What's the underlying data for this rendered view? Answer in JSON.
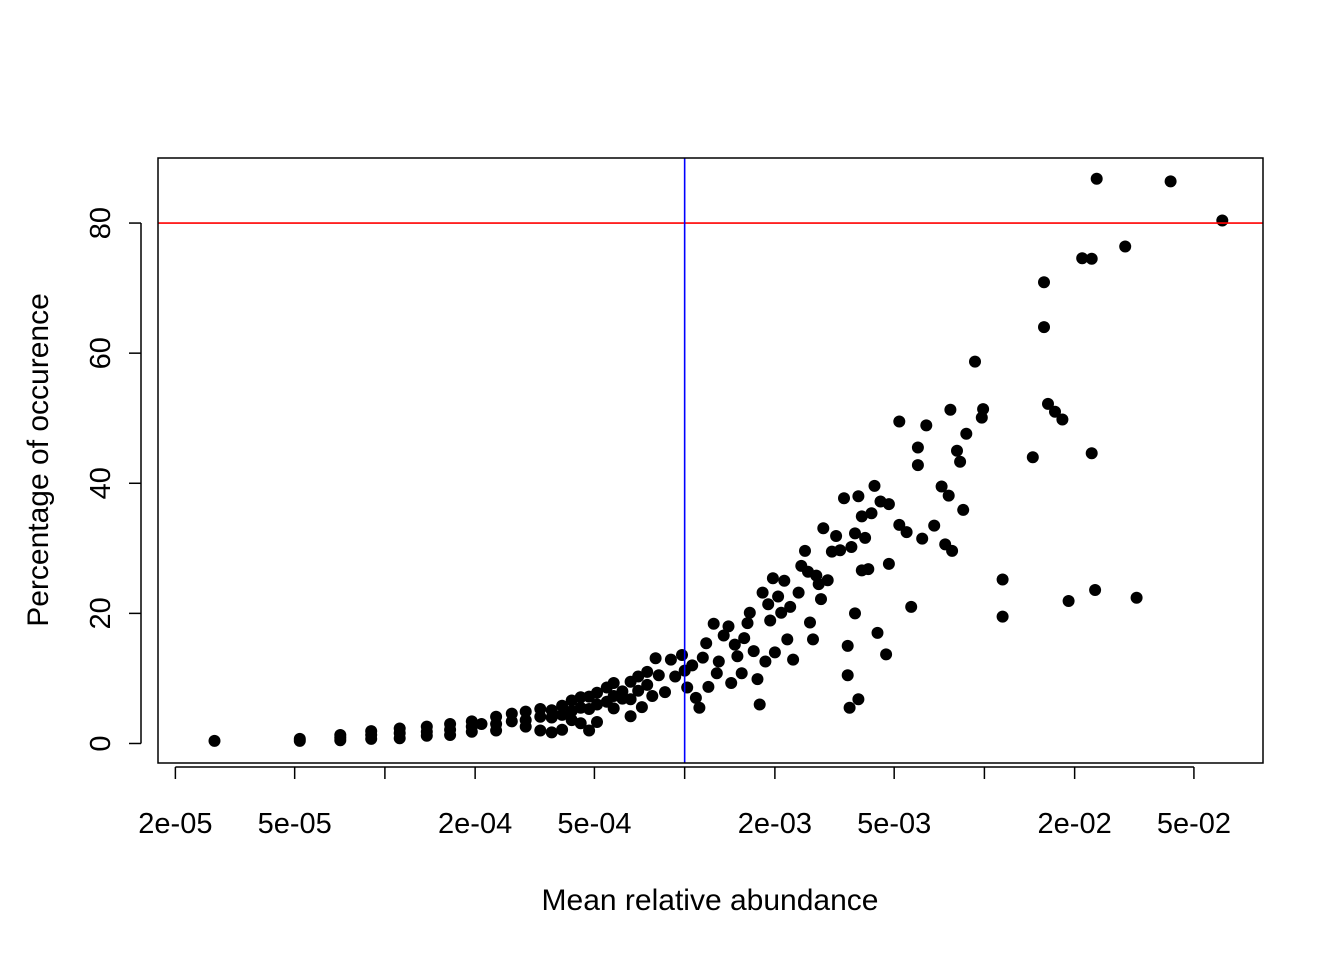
{
  "chart_data": {
    "type": "scatter",
    "title": "",
    "xlabel": "Mean relative abundance",
    "ylabel": "Percentage of occurence",
    "x_scale": "log",
    "xlim": [
      1.75e-05,
      0.085
    ],
    "ylim": [
      -3,
      90
    ],
    "x_ticks": [
      2e-05,
      5e-05,
      0.0001,
      0.0002,
      0.0005,
      0.001,
      0.002,
      0.005,
      0.01,
      0.02,
      0.05
    ],
    "x_tick_labels": [
      "2e-05",
      "5e-05",
      "",
      "2e-04",
      "5e-04",
      "",
      "2e-03",
      "5e-03",
      "",
      "2e-02",
      "5e-02"
    ],
    "y_ticks": [
      0,
      20,
      40,
      60,
      80
    ],
    "y_tick_labels": [
      "0",
      "20",
      "40",
      "60",
      "80"
    ],
    "grid": false,
    "legend": "none",
    "reference_lines": [
      {
        "orientation": "horizontal",
        "value": 80,
        "color": "#ff0000"
      },
      {
        "orientation": "vertical",
        "value": 0.001,
        "color": "#0000ff"
      }
    ],
    "point_color": "#000000",
    "points": [
      [
        2.7e-05,
        0.4
      ],
      [
        5.2e-05,
        0.7
      ],
      [
        5.2e-05,
        0.4
      ],
      [
        7.1e-05,
        1.3
      ],
      [
        7.1e-05,
        0.9
      ],
      [
        7.1e-05,
        0.5
      ],
      [
        9e-05,
        1.9
      ],
      [
        9e-05,
        1.3
      ],
      [
        9e-05,
        0.7
      ],
      [
        0.000112,
        2.3
      ],
      [
        0.000112,
        1.6
      ],
      [
        0.000112,
        0.8
      ],
      [
        0.000138,
        2.6
      ],
      [
        0.000138,
        1.8
      ],
      [
        0.000138,
        1.2
      ],
      [
        0.000165,
        3.0
      ],
      [
        0.000165,
        2.1
      ],
      [
        0.000165,
        1.3
      ],
      [
        0.000195,
        3.4
      ],
      [
        0.000195,
        2.6
      ],
      [
        0.000195,
        1.8
      ],
      [
        0.00021,
        3.0
      ],
      [
        0.000235,
        4.1
      ],
      [
        0.000235,
        3.0
      ],
      [
        0.000235,
        2.0
      ],
      [
        0.000265,
        4.6
      ],
      [
        0.000265,
        3.4
      ],
      [
        0.000295,
        4.9
      ],
      [
        0.000295,
        3.6
      ],
      [
        0.000295,
        2.6
      ],
      [
        0.00033,
        5.3
      ],
      [
        0.00033,
        4.1
      ],
      [
        0.00033,
        2.0
      ],
      [
        0.00036,
        5.1
      ],
      [
        0.00036,
        4.0
      ],
      [
        0.00036,
        1.7
      ],
      [
        0.00039,
        5.8
      ],
      [
        0.00039,
        4.4
      ],
      [
        0.00039,
        2.1
      ],
      [
        0.00042,
        6.6
      ],
      [
        0.00042,
        5.0
      ],
      [
        0.00042,
        3.6
      ],
      [
        0.00045,
        7.1
      ],
      [
        0.00045,
        5.5
      ],
      [
        0.00045,
        3.1
      ],
      [
        0.00048,
        7.2
      ],
      [
        0.00048,
        5.3
      ],
      [
        0.00048,
        2.0
      ],
      [
        0.00051,
        7.8
      ],
      [
        0.00051,
        6.0
      ],
      [
        0.00051,
        3.3
      ],
      [
        0.00055,
        8.6
      ],
      [
        0.00055,
        6.4
      ],
      [
        0.00058,
        9.3
      ],
      [
        0.00058,
        7.3
      ],
      [
        0.00058,
        5.4
      ],
      [
        0.00062,
        8.0
      ],
      [
        0.00062,
        6.9
      ],
      [
        0.00066,
        9.5
      ],
      [
        0.00066,
        6.8
      ],
      [
        0.00066,
        4.2
      ],
      [
        0.0007,
        10.3
      ],
      [
        0.0007,
        8.1
      ],
      [
        0.00072,
        5.6
      ],
      [
        0.00075,
        11.0
      ],
      [
        0.00075,
        9.0
      ],
      [
        0.00078,
        7.3
      ],
      [
        0.0008,
        13.1
      ],
      [
        0.00082,
        10.5
      ],
      [
        0.00086,
        7.9
      ],
      [
        0.0009,
        12.9
      ],
      [
        0.00093,
        10.3
      ],
      [
        0.00098,
        13.6
      ],
      [
        0.001,
        11.2
      ],
      [
        0.00102,
        8.6
      ],
      [
        0.00106,
        12.0
      ],
      [
        0.00109,
        7.0
      ],
      [
        0.00112,
        5.5
      ],
      [
        0.00115,
        13.2
      ],
      [
        0.00118,
        15.4
      ],
      [
        0.0012,
        8.7
      ],
      [
        0.00125,
        18.4
      ],
      [
        0.00128,
        10.8
      ],
      [
        0.0013,
        12.6
      ],
      [
        0.00135,
        16.6
      ],
      [
        0.0014,
        18.0
      ],
      [
        0.00143,
        9.3
      ],
      [
        0.00147,
        15.2
      ],
      [
        0.0015,
        13.4
      ],
      [
        0.00155,
        10.8
      ],
      [
        0.00158,
        16.2
      ],
      [
        0.00162,
        18.5
      ],
      [
        0.00165,
        20.1
      ],
      [
        0.0017,
        14.2
      ],
      [
        0.00175,
        9.9
      ],
      [
        0.00178,
        6.0
      ],
      [
        0.00182,
        23.2
      ],
      [
        0.00186,
        12.6
      ],
      [
        0.0019,
        21.4
      ],
      [
        0.00193,
        18.9
      ],
      [
        0.00197,
        25.4
      ],
      [
        0.002,
        14.0
      ],
      [
        0.00205,
        22.6
      ],
      [
        0.0021,
        20.1
      ],
      [
        0.00215,
        25.0
      ],
      [
        0.0022,
        16.0
      ],
      [
        0.00225,
        21.0
      ],
      [
        0.0023,
        12.9
      ],
      [
        0.0024,
        23.2
      ],
      [
        0.00245,
        27.3
      ],
      [
        0.00252,
        29.6
      ],
      [
        0.00258,
        26.4
      ],
      [
        0.00262,
        18.6
      ],
      [
        0.00268,
        16.0
      ],
      [
        0.00275,
        25.8
      ],
      [
        0.0028,
        24.5
      ],
      [
        0.00285,
        22.2
      ],
      [
        0.0029,
        33.1
      ],
      [
        0.003,
        25.1
      ],
      [
        0.0031,
        29.5
      ],
      [
        0.0032,
        31.9
      ],
      [
        0.0033,
        29.7
      ],
      [
        0.0034,
        37.7
      ],
      [
        0.0035,
        15.0
      ],
      [
        0.0035,
        10.5
      ],
      [
        0.00355,
        5.5
      ],
      [
        0.0036,
        30.2
      ],
      [
        0.0037,
        32.3
      ],
      [
        0.0037,
        20.0
      ],
      [
        0.0038,
        38.0
      ],
      [
        0.0038,
        6.8
      ],
      [
        0.0039,
        34.9
      ],
      [
        0.0039,
        26.6
      ],
      [
        0.004,
        31.6
      ],
      [
        0.0041,
        26.8
      ],
      [
        0.0042,
        35.4
      ],
      [
        0.0043,
        39.6
      ],
      [
        0.0044,
        17.0
      ],
      [
        0.0045,
        37.2
      ],
      [
        0.0047,
        13.7
      ],
      [
        0.0048,
        36.8
      ],
      [
        0.0048,
        27.6
      ],
      [
        0.0052,
        49.5
      ],
      [
        0.0052,
        33.6
      ],
      [
        0.0055,
        32.5
      ],
      [
        0.0057,
        21.0
      ],
      [
        0.006,
        45.5
      ],
      [
        0.006,
        42.8
      ],
      [
        0.0062,
        31.5
      ],
      [
        0.0064,
        48.9
      ],
      [
        0.0068,
        33.5
      ],
      [
        0.0072,
        39.5
      ],
      [
        0.0074,
        30.6
      ],
      [
        0.0076,
        38.1
      ],
      [
        0.0077,
        51.3
      ],
      [
        0.0078,
        29.6
      ],
      [
        0.0081,
        45.0
      ],
      [
        0.0083,
        43.3
      ],
      [
        0.0085,
        35.9
      ],
      [
        0.0087,
        47.6
      ],
      [
        0.0093,
        58.7
      ],
      [
        0.0098,
        50.1
      ],
      [
        0.0099,
        51.4
      ],
      [
        0.0115,
        25.2
      ],
      [
        0.0115,
        19.5
      ],
      [
        0.0145,
        44.0
      ],
      [
        0.0158,
        70.9
      ],
      [
        0.0158,
        64.0
      ],
      [
        0.0163,
        52.2
      ],
      [
        0.0172,
        51.0
      ],
      [
        0.0182,
        49.8
      ],
      [
        0.0191,
        21.9
      ],
      [
        0.0212,
        74.6
      ],
      [
        0.0228,
        74.5
      ],
      [
        0.0228,
        44.6
      ],
      [
        0.0234,
        23.6
      ],
      [
        0.0237,
        86.8
      ],
      [
        0.0295,
        76.4
      ],
      [
        0.0322,
        22.4
      ],
      [
        0.0418,
        86.4
      ],
      [
        0.0622,
        80.4
      ]
    ]
  }
}
